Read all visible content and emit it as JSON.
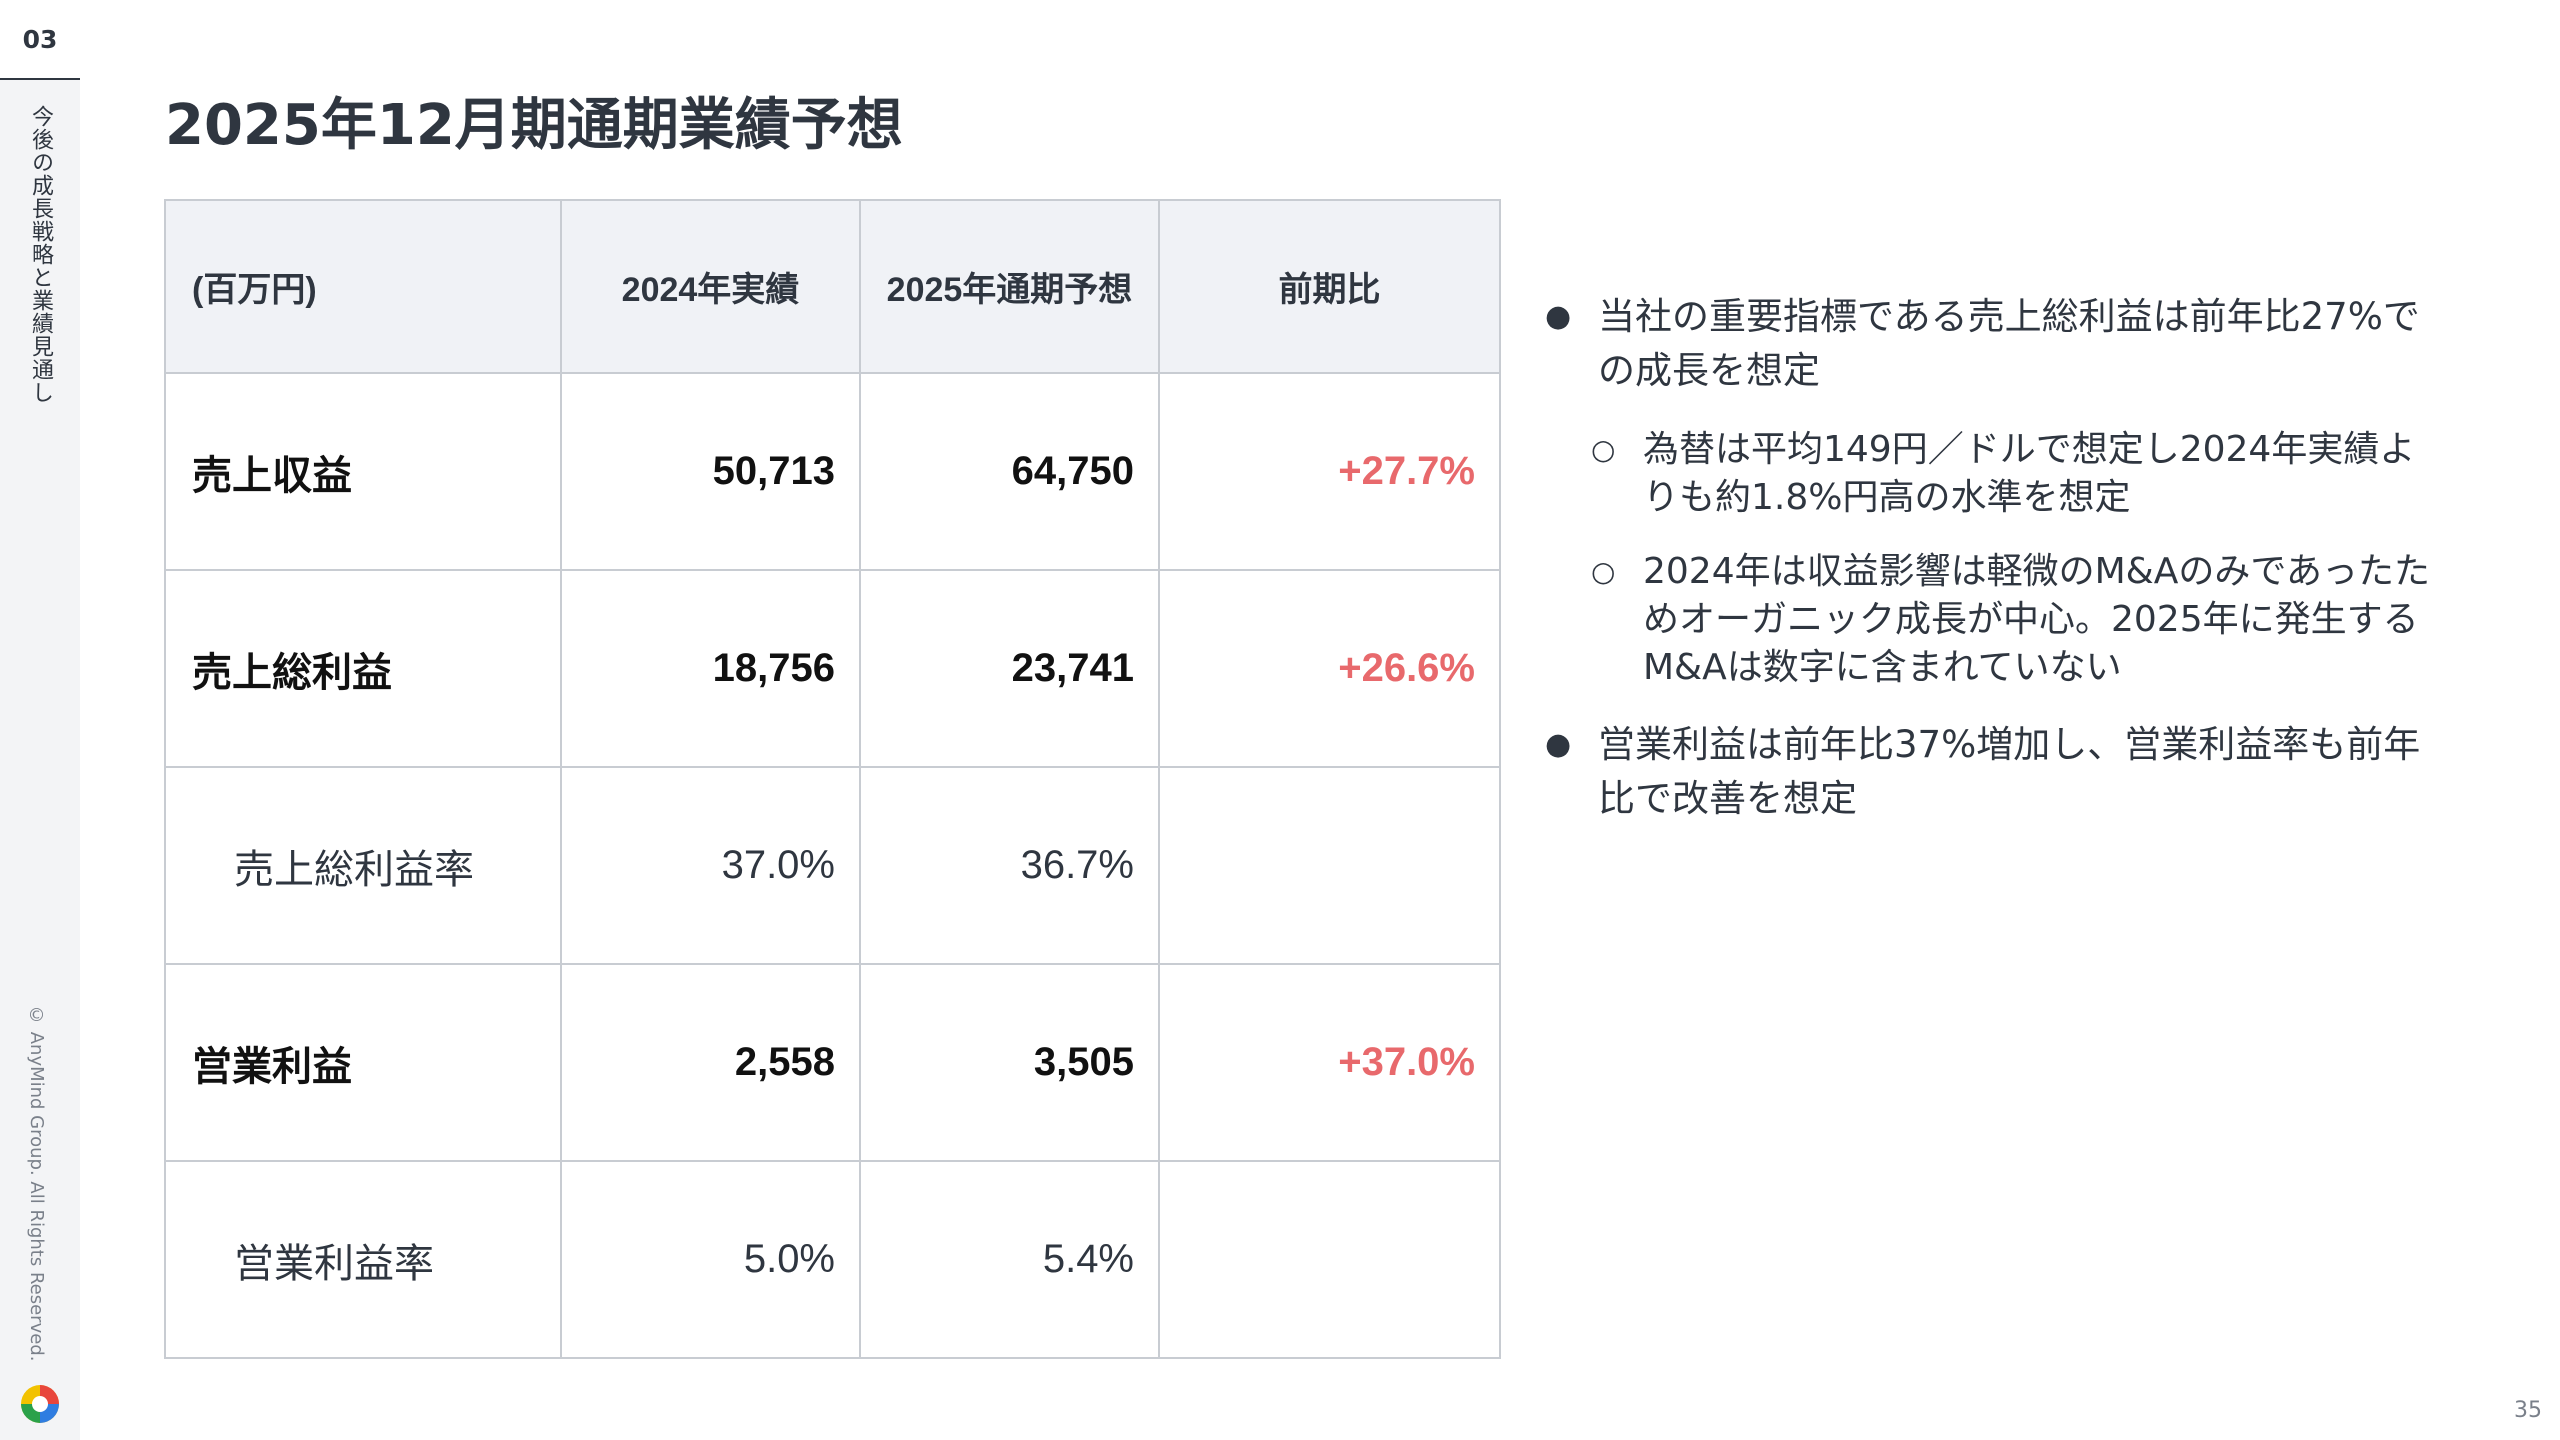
{
  "rail": {
    "section_number": "03",
    "chapter": "今後の成長戦略と業績見通し",
    "copyright": "© AnyMind Group. All Rights Reserved."
  },
  "title": "2025年12月期通期業績予想",
  "table": {
    "headers": [
      "(百万円)",
      "2024年実績",
      "2025年通期予想",
      "前期比"
    ],
    "rows": [
      {
        "label": "売上収益",
        "actual_2024": "50,713",
        "forecast_2025": "64,750",
        "growth": "+27.7%"
      },
      {
        "label": "売上総利益",
        "actual_2024": "18,756",
        "forecast_2025": "23,741",
        "growth": "+26.6%"
      },
      {
        "label": "売上総利益率",
        "actual_2024": "37.0%",
        "forecast_2025": "36.7%",
        "growth": ""
      },
      {
        "label": "営業利益",
        "actual_2024": "2,558",
        "forecast_2025": "3,505",
        "growth": "+37.0%"
      },
      {
        "label": "営業利益率",
        "actual_2024": "5.0%",
        "forecast_2025": "5.4%",
        "growth": ""
      }
    ]
  },
  "notes": {
    "bullet_1": "当社の重要指標である売上総利益は前年比27%での成長を想定",
    "sub_1": "為替は平均149円／ドルで想定し2024年実績よりも約1.8%円高の水準を想定",
    "sub_2": "2024年は収益影響は軽微のM&Aのみであったためオーガニック成長が中心。2025年に発生するM&Aは数字に含まれていない",
    "bullet_2": "営業利益は前年比37%増加し、営業利益率も前年比で改善を想定"
  },
  "page_number": "35",
  "colors": {
    "growth": "#e8696c",
    "header_bg": "#f0f2f6",
    "rail_bg": "#f3f4f6"
  },
  "icons": {
    "logo": "anymind-logo-icon"
  }
}
